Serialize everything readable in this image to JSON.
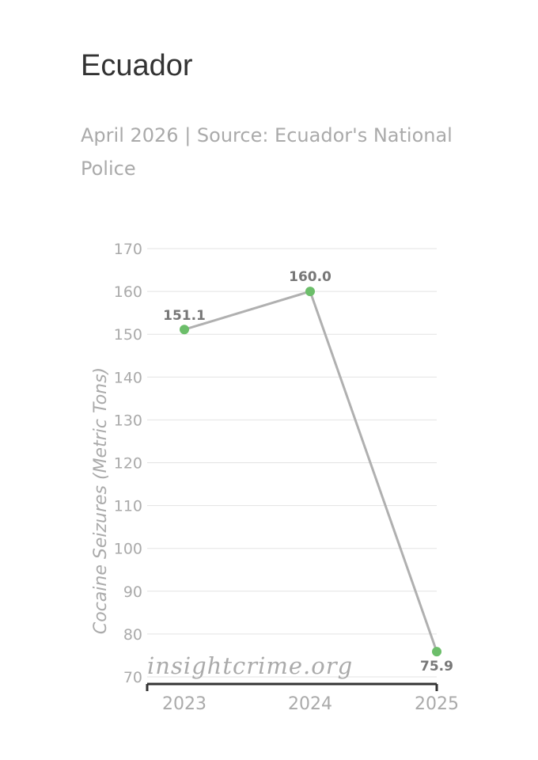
{
  "header": {
    "title": "Ecuador",
    "subtitle": "April 2026 | Source: Ecuador's National Police"
  },
  "watermark": "insightcrime.org",
  "chart_data": {
    "type": "line",
    "title": "Ecuador",
    "subtitle": "April 2026 | Source: Ecuador's National Police",
    "xlabel": "",
    "ylabel": "Cocaine Seizures (Metric Tons)",
    "categories": [
      "2023",
      "2024",
      "2025"
    ],
    "series": [
      {
        "values": [
          151.1,
          160.0,
          75.9
        ],
        "data_labels": [
          "151.1",
          "160.0",
          "75.9"
        ]
      }
    ],
    "ylim": [
      70,
      170
    ],
    "yticks": [
      "70",
      "80",
      "90",
      "100",
      "110",
      "120",
      "130",
      "140",
      "150",
      "160",
      "170"
    ],
    "grid": true,
    "legend": "none",
    "colors": {
      "line": "#b0b0b0",
      "marker": "#6cbe6a",
      "grid": "#e3e3e3",
      "axis": "#333333"
    }
  }
}
